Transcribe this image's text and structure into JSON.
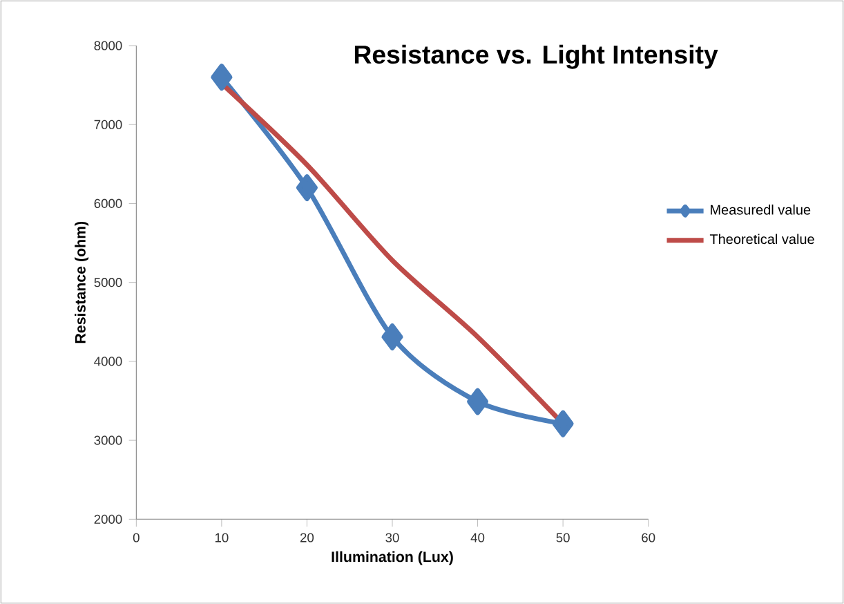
{
  "chart_data": {
    "type": "line",
    "title": "Resistance vs. Light Intensity",
    "xlabel": "Illumination (Lux)",
    "ylabel": "Resistance (ohm)",
    "x": [
      10,
      20,
      30,
      40,
      50
    ],
    "series": [
      {
        "name": "Measuredl value",
        "color": "#4a7ebb",
        "marker": "diamond",
        "values": [
          7600,
          6200,
          4310,
          3490,
          3210
        ]
      },
      {
        "name": "Theoretical value",
        "color": "#be4b48",
        "marker": "none",
        "values": [
          7520,
          6490,
          5280,
          4310,
          3210
        ]
      }
    ],
    "xlim": [
      0,
      60
    ],
    "xticks": [
      0,
      10,
      20,
      30,
      40,
      50,
      60
    ],
    "ylim": [
      2000,
      8000
    ],
    "yticks": [
      2000,
      3000,
      4000,
      5000,
      6000,
      7000,
      8000
    ],
    "grid": false,
    "legend": "right"
  }
}
